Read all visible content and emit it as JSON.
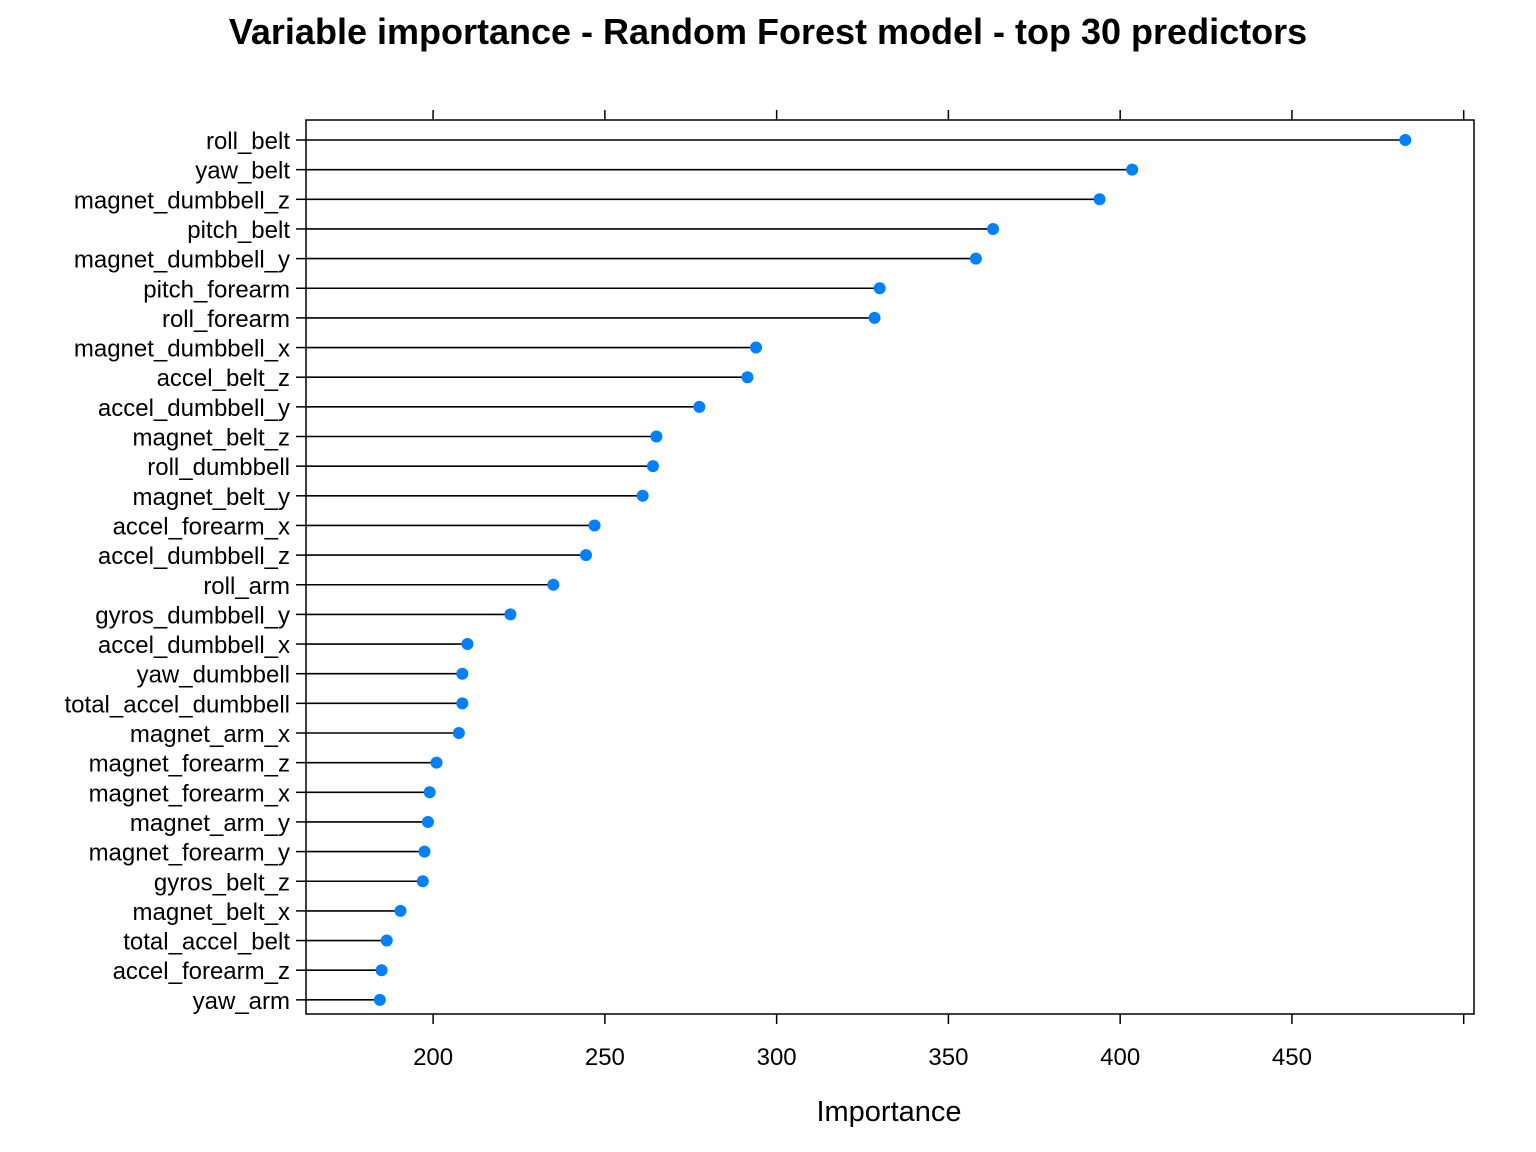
{
  "chart_data": {
    "type": "dot",
    "title": "Variable importance - Random Forest model - top 30 predictors",
    "xlabel": "Importance",
    "ylabel": "",
    "xlim": [
      163,
      503
    ],
    "xticks": [
      200,
      250,
      300,
      350,
      400,
      450
    ],
    "xtick_labels": [
      "200",
      "250",
      "300",
      "350",
      "400",
      "450"
    ],
    "grid": false,
    "categories": [
      "roll_belt",
      "yaw_belt",
      "magnet_dumbbell_z",
      "pitch_belt",
      "magnet_dumbbell_y",
      "pitch_forearm",
      "roll_forearm",
      "magnet_dumbbell_x",
      "accel_belt_z",
      "accel_dumbbell_y",
      "magnet_belt_z",
      "roll_dumbbell",
      "magnet_belt_y",
      "accel_forearm_x",
      "accel_dumbbell_z",
      "roll_arm",
      "gyros_dumbbell_y",
      "accel_dumbbell_x",
      "yaw_dumbbell",
      "total_accel_dumbbell",
      "magnet_arm_x",
      "magnet_forearm_z",
      "magnet_forearm_x",
      "magnet_arm_y",
      "magnet_forearm_y",
      "gyros_belt_z",
      "magnet_belt_x",
      "total_accel_belt",
      "accel_forearm_z",
      "yaw_arm"
    ],
    "values": [
      483,
      403.5,
      394,
      363,
      358,
      330,
      328.5,
      294,
      291.5,
      277.5,
      265,
      264,
      261,
      247,
      244.5,
      235,
      222.5,
      210,
      208.5,
      208.5,
      207.5,
      201,
      199,
      198.5,
      197.5,
      197,
      190.5,
      186.5,
      185,
      184.5
    ],
    "colors": {
      "point": "#0080FF",
      "line": "#000000"
    }
  }
}
